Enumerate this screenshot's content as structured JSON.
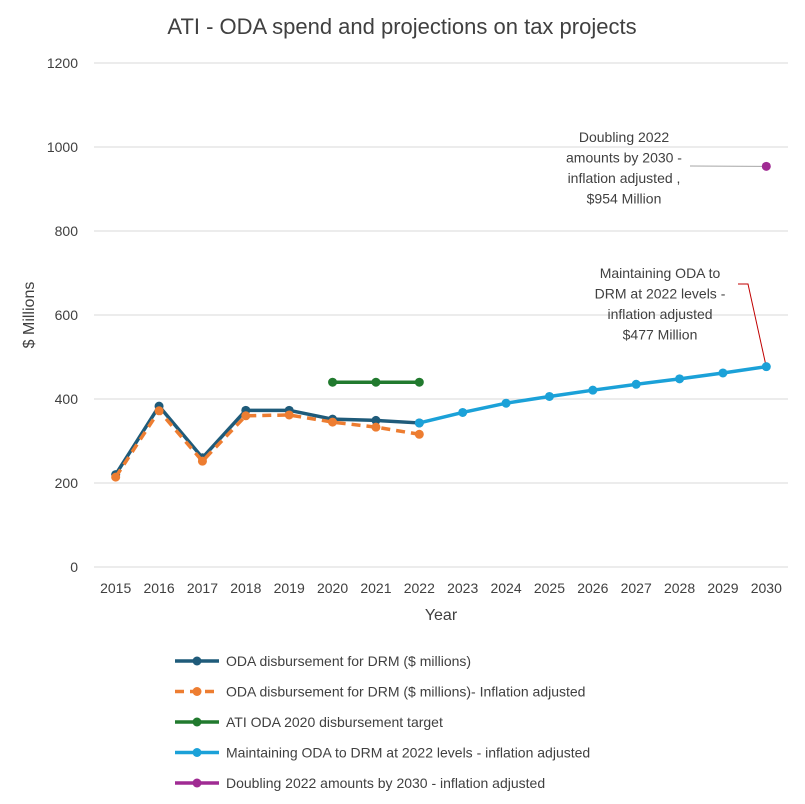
{
  "chart_data": {
    "type": "line",
    "title": "ATI - ODA spend and projections on tax projects",
    "xlabel": "Year",
    "ylabel": "$ Millions",
    "ylim": [
      0,
      1200
    ],
    "yticks": [
      0,
      200,
      400,
      600,
      800,
      1000,
      1200
    ],
    "categories": [
      "2015",
      "2016",
      "2017",
      "2018",
      "2019",
      "2020",
      "2021",
      "2022",
      "2023",
      "2024",
      "2025",
      "2026",
      "2027",
      "2028",
      "2029",
      "2030"
    ],
    "grid": true,
    "legend_position": "bottom",
    "series": [
      {
        "name": "ODA disbursement for DRM ($ millions)",
        "color": "#1f5b7a",
        "dashed": false,
        "points": [
          [
            "2015",
            220
          ],
          [
            "2016",
            383
          ],
          [
            "2017",
            260
          ],
          [
            "2018",
            373
          ],
          [
            "2019",
            373
          ],
          [
            "2020",
            352
          ],
          [
            "2021",
            349
          ],
          [
            "2022",
            343
          ]
        ]
      },
      {
        "name": "ODA disbursement for DRM ($ millions)- Inflation adjusted",
        "color": "#ed7d31",
        "dashed": true,
        "points": [
          [
            "2015",
            214
          ],
          [
            "2016",
            372
          ],
          [
            "2017",
            252
          ],
          [
            "2018",
            360
          ],
          [
            "2019",
            362
          ],
          [
            "2020",
            345
          ],
          [
            "2021",
            333
          ],
          [
            "2022",
            316
          ]
        ]
      },
      {
        "name": "ATI ODA 2020 disbursement target",
        "color": "#217a2e",
        "dashed": false,
        "points": [
          [
            "2020",
            440
          ],
          [
            "2021",
            440
          ],
          [
            "2022",
            440
          ]
        ]
      },
      {
        "name": "Maintaining ODA to DRM at 2022 levels - inflation adjusted",
        "color": "#1ba1d8",
        "dashed": false,
        "points": [
          [
            "2022",
            343
          ],
          [
            "2023",
            368
          ],
          [
            "2024",
            390
          ],
          [
            "2025",
            406
          ],
          [
            "2026",
            421
          ],
          [
            "2027",
            435
          ],
          [
            "2028",
            448
          ],
          [
            "2029",
            462
          ],
          [
            "2030",
            477
          ]
        ]
      },
      {
        "name": "Doubling 2022 amounts by 2030 - inflation adjusted",
        "color": "#a02b93",
        "dashed": false,
        "points": [
          [
            "2030",
            954
          ]
        ]
      }
    ],
    "annotations": [
      {
        "lines": [
          "Doubling 2022",
          "amounts by 2030 -",
          "inflation adjusted ,",
          "$954 Million"
        ],
        "target": [
          "2030",
          954
        ],
        "color": "#a6a6a6"
      },
      {
        "lines": [
          "Maintaining ODA to",
          "DRM at 2022 levels -",
          "inflation adjusted",
          "$477 Million"
        ],
        "target": [
          "2030",
          477
        ],
        "color": "#c00000"
      }
    ]
  }
}
